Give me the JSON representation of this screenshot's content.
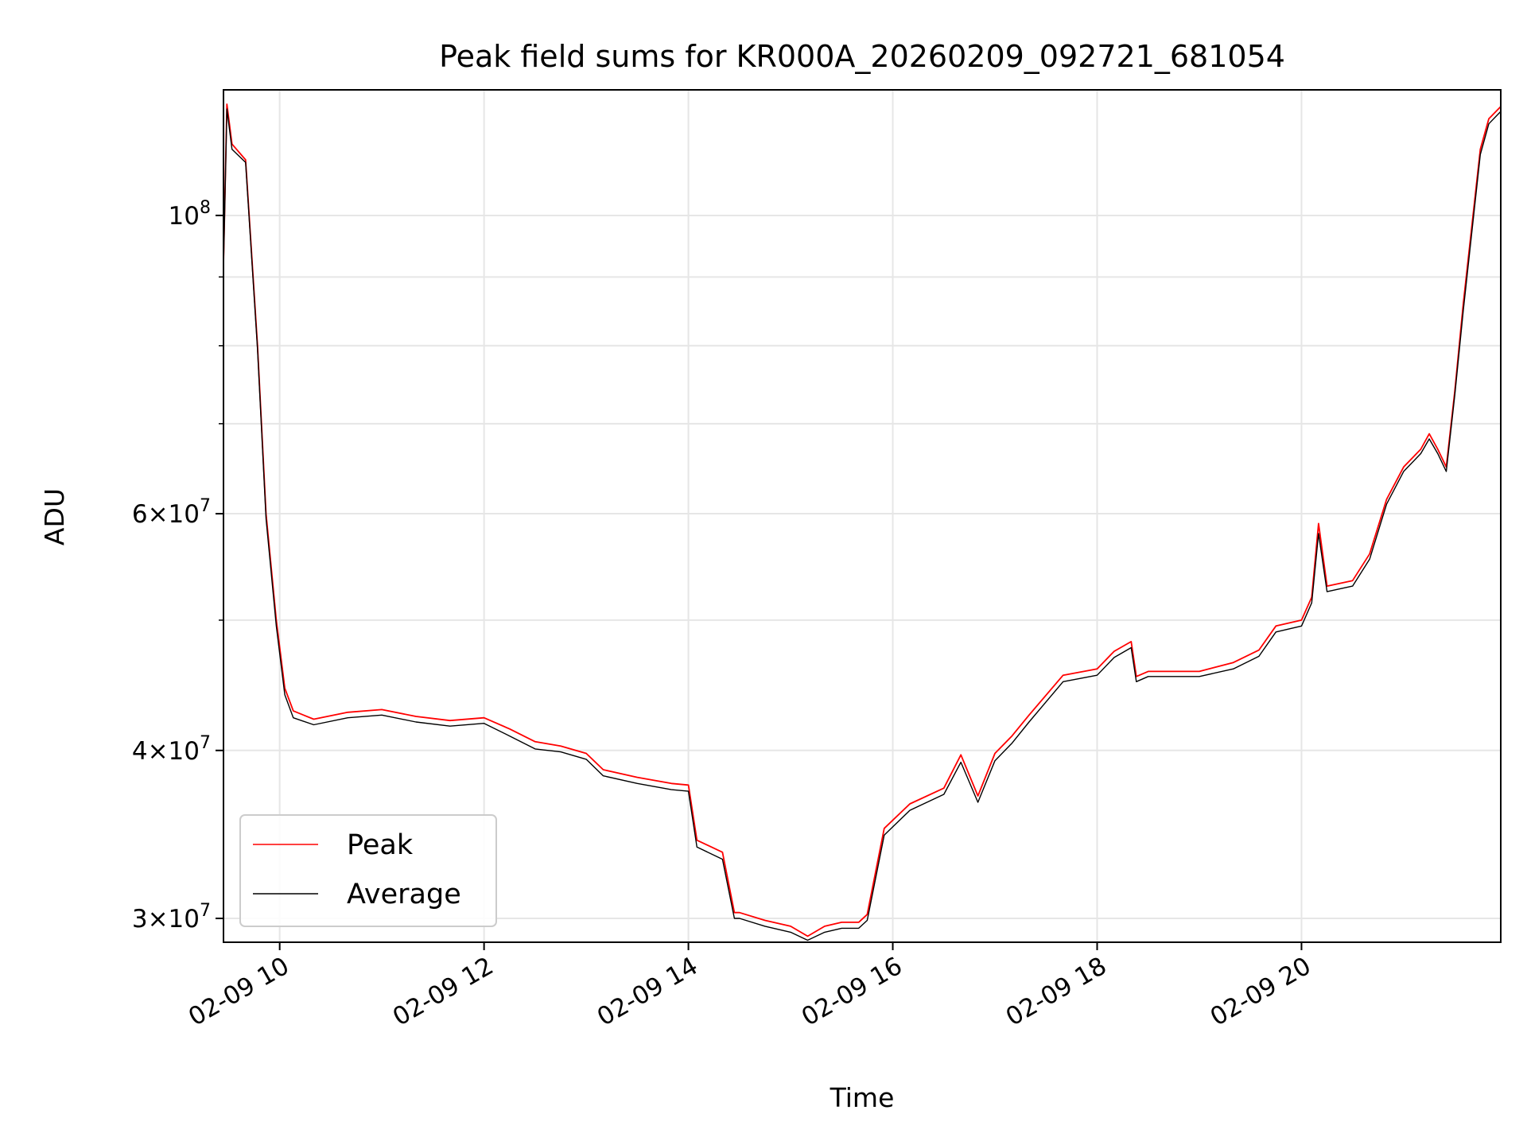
{
  "chart_data": {
    "type": "line",
    "title": "Peak field sums for KR000A_20260209_092721_681054",
    "xlabel": "Time",
    "ylabel": "ADU",
    "yscale": "log",
    "grid": true,
    "legend_placement": "lower-left",
    "xlim": [
      "02-09 09:27",
      "02-09 21:57"
    ],
    "ylim": [
      28800000,
      124000000
    ],
    "x_ticks": [
      {
        "t": "02-09 10:00",
        "label": "02-09 10"
      },
      {
        "t": "02-09 12:00",
        "label": "02-09 12"
      },
      {
        "t": "02-09 14:00",
        "label": "02-09 14"
      },
      {
        "t": "02-09 16:00",
        "label": "02-09 16"
      },
      {
        "t": "02-09 18:00",
        "label": "02-09 18"
      },
      {
        "t": "02-09 20:00",
        "label": "02-09 20"
      }
    ],
    "y_ticks": [
      {
        "value": 30000000,
        "mant": "3",
        "exp": "7"
      },
      {
        "value": 40000000,
        "mant": "4",
        "exp": "7"
      },
      {
        "value": 60000000,
        "mant": "6",
        "exp": "7"
      },
      {
        "value": 100000000,
        "mant": "",
        "exp": "8"
      }
    ],
    "y_minor_ticks": [
      50000000,
      70000000,
      80000000,
      90000000
    ],
    "series": [
      {
        "name": "Peak",
        "color": "#ff0000",
        "x": [
          "02-09 09:27",
          "02-09 09:29",
          "02-09 09:32",
          "02-09 09:40",
          "02-09 09:47",
          "02-09 09:52",
          "02-09 09:58",
          "02-09 10:03",
          "02-09 10:08",
          "02-09 10:20",
          "02-09 10:40",
          "02-09 11:00",
          "02-09 11:20",
          "02-09 11:40",
          "02-09 12:00",
          "02-09 12:15",
          "02-09 12:30",
          "02-09 12:45",
          "02-09 13:00",
          "02-09 13:10",
          "02-09 13:30",
          "02-09 13:50",
          "02-09 14:00",
          "02-09 14:05",
          "02-09 14:20",
          "02-09 14:27",
          "02-09 14:30",
          "02-09 14:45",
          "02-09 15:00",
          "02-09 15:10",
          "02-09 15:20",
          "02-09 15:30",
          "02-09 15:40",
          "02-09 15:45",
          "02-09 15:55",
          "02-09 16:10",
          "02-09 16:30",
          "02-09 16:40",
          "02-09 16:50",
          "02-09 17:00",
          "02-09 17:10",
          "02-09 17:20",
          "02-09 17:40",
          "02-09 18:00",
          "02-09 18:10",
          "02-09 18:20",
          "02-09 18:23",
          "02-09 18:30",
          "02-09 19:00",
          "02-09 19:20",
          "02-09 19:35",
          "02-09 19:45",
          "02-09 20:00",
          "02-09 20:06",
          "02-09 20:10",
          "02-09 20:15",
          "02-09 20:30",
          "02-09 20:40",
          "02-09 20:50",
          "02-09 21:00",
          "02-09 21:10",
          "02-09 21:15",
          "02-09 21:20",
          "02-09 21:25",
          "02-09 21:30",
          "02-09 21:35",
          "02-09 21:45",
          "02-09 21:50",
          "02-09 21:57"
        ],
        "y": [
          92000000,
          121000000,
          113000000,
          110000000,
          80000000,
          60000000,
          50000000,
          44500000,
          42800000,
          42200000,
          42700000,
          42900000,
          42400000,
          42100000,
          42300000,
          41500000,
          40600000,
          40300000,
          39800000,
          38700000,
          38200000,
          37800000,
          37700000,
          34300000,
          33600000,
          30300000,
          30300000,
          29900000,
          29600000,
          29100000,
          29600000,
          29800000,
          29800000,
          30200000,
          35000000,
          36500000,
          37500000,
          39700000,
          37000000,
          39800000,
          41000000,
          42500000,
          45500000,
          46000000,
          47400000,
          48200000,
          45400000,
          45800000,
          45800000,
          46500000,
          47500000,
          49500000,
          50000000,
          52000000,
          59000000,
          53000000,
          53500000,
          56000000,
          61500000,
          65000000,
          67000000,
          68800000,
          67000000,
          65000000,
          74000000,
          86000000,
          112000000,
          118000000,
          120500000
        ]
      },
      {
        "name": "Average",
        "color": "#000000",
        "x": [
          "02-09 09:27",
          "02-09 09:29",
          "02-09 09:32",
          "02-09 09:40",
          "02-09 09:47",
          "02-09 09:52",
          "02-09 09:58",
          "02-09 10:03",
          "02-09 10:08",
          "02-09 10:20",
          "02-09 10:40",
          "02-09 11:00",
          "02-09 11:20",
          "02-09 11:40",
          "02-09 12:00",
          "02-09 12:15",
          "02-09 12:30",
          "02-09 12:45",
          "02-09 13:00",
          "02-09 13:10",
          "02-09 13:30",
          "02-09 13:50",
          "02-09 14:00",
          "02-09 14:05",
          "02-09 14:20",
          "02-09 14:27",
          "02-09 14:30",
          "02-09 14:45",
          "02-09 15:00",
          "02-09 15:10",
          "02-09 15:20",
          "02-09 15:30",
          "02-09 15:40",
          "02-09 15:45",
          "02-09 15:55",
          "02-09 16:10",
          "02-09 16:30",
          "02-09 16:40",
          "02-09 16:50",
          "02-09 17:00",
          "02-09 17:10",
          "02-09 17:20",
          "02-09 17:40",
          "02-09 18:00",
          "02-09 18:10",
          "02-09 18:20",
          "02-09 18:23",
          "02-09 18:30",
          "02-09 19:00",
          "02-09 19:20",
          "02-09 19:35",
          "02-09 19:45",
          "02-09 20:00",
          "02-09 20:06",
          "02-09 20:10",
          "02-09 20:15",
          "02-09 20:30",
          "02-09 20:40",
          "02-09 20:50",
          "02-09 21:00",
          "02-09 21:10",
          "02-09 21:15",
          "02-09 21:20",
          "02-09 21:25",
          "02-09 21:30",
          "02-09 21:35",
          "02-09 21:45",
          "02-09 21:50",
          "02-09 21:57"
        ],
        "y": [
          91500000,
          120000000,
          112000000,
          109500000,
          79500000,
          59500000,
          49500000,
          44000000,
          42300000,
          41800000,
          42300000,
          42500000,
          42000000,
          41700000,
          41900000,
          41000000,
          40100000,
          39900000,
          39400000,
          38300000,
          37800000,
          37400000,
          37300000,
          33900000,
          33200000,
          30000000,
          30000000,
          29600000,
          29300000,
          28900000,
          29300000,
          29500000,
          29500000,
          29900000,
          34600000,
          36100000,
          37100000,
          39200000,
          36600000,
          39300000,
          40500000,
          42000000,
          45000000,
          45500000,
          46900000,
          47700000,
          45000000,
          45400000,
          45400000,
          46000000,
          47000000,
          49000000,
          49500000,
          51500000,
          58000000,
          52500000,
          53000000,
          55500000,
          61000000,
          64500000,
          66500000,
          68200000,
          66500000,
          64500000,
          73500000,
          85000000,
          111000000,
          117000000,
          119500000
        ]
      }
    ]
  }
}
